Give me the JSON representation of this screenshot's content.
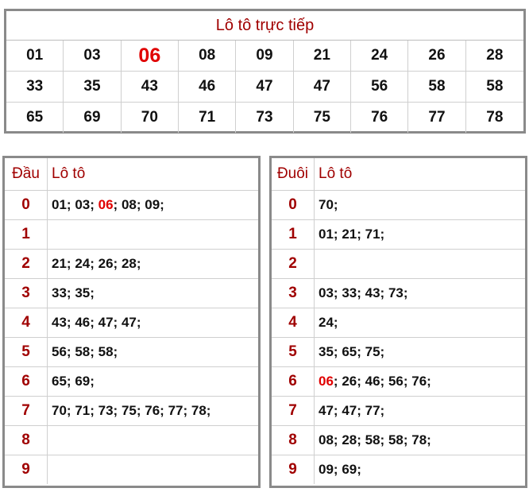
{
  "live": {
    "title": "Lô tô trực tiếp",
    "highlight": "06",
    "numbers": [
      "01",
      "03",
      "06",
      "08",
      "09",
      "21",
      "24",
      "26",
      "28",
      "33",
      "35",
      "43",
      "46",
      "47",
      "47",
      "56",
      "58",
      "58",
      "65",
      "69",
      "70",
      "71",
      "73",
      "75",
      "76",
      "77",
      "78"
    ]
  },
  "dau": {
    "key_header": "Đầu",
    "val_header": "Lô tô",
    "rows": [
      {
        "key": "0",
        "nums": [
          "01",
          "03",
          "06",
          "08",
          "09"
        ]
      },
      {
        "key": "1",
        "nums": []
      },
      {
        "key": "2",
        "nums": [
          "21",
          "24",
          "26",
          "28"
        ]
      },
      {
        "key": "3",
        "nums": [
          "33",
          "35"
        ]
      },
      {
        "key": "4",
        "nums": [
          "43",
          "46",
          "47",
          "47"
        ]
      },
      {
        "key": "5",
        "nums": [
          "56",
          "58",
          "58"
        ]
      },
      {
        "key": "6",
        "nums": [
          "65",
          "69"
        ]
      },
      {
        "key": "7",
        "nums": [
          "70",
          "71",
          "73",
          "75",
          "76",
          "77",
          "78"
        ]
      },
      {
        "key": "8",
        "nums": []
      },
      {
        "key": "9",
        "nums": []
      }
    ]
  },
  "duoi": {
    "key_header": "Đuôi",
    "val_header": "Lô tô",
    "rows": [
      {
        "key": "0",
        "nums": [
          "70"
        ]
      },
      {
        "key": "1",
        "nums": [
          "01",
          "21",
          "71"
        ]
      },
      {
        "key": "2",
        "nums": []
      },
      {
        "key": "3",
        "nums": [
          "03",
          "33",
          "43",
          "73"
        ]
      },
      {
        "key": "4",
        "nums": [
          "24"
        ]
      },
      {
        "key": "5",
        "nums": [
          "35",
          "65",
          "75"
        ]
      },
      {
        "key": "6",
        "nums": [
          "06",
          "26",
          "46",
          "56",
          "76"
        ]
      },
      {
        "key": "7",
        "nums": [
          "47",
          "47",
          "77"
        ]
      },
      {
        "key": "8",
        "nums": [
          "08",
          "28",
          "58",
          "58",
          "78"
        ]
      },
      {
        "key": "9",
        "nums": [
          "09",
          "69"
        ]
      }
    ]
  },
  "colors": {
    "accent": "#a00000",
    "highlight": "#e00000",
    "border": "#8a8a8a"
  }
}
